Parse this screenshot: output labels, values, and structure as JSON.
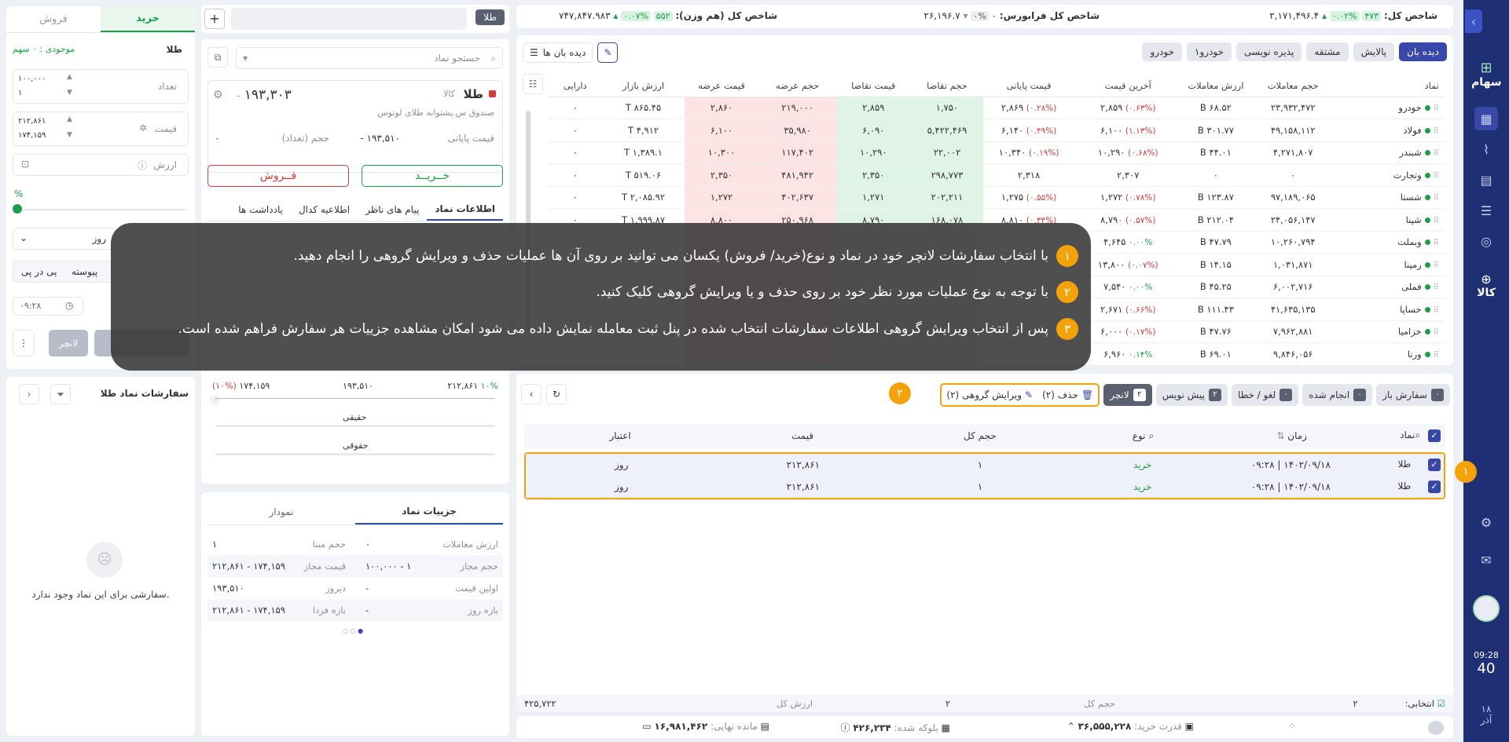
{
  "sidebar": {
    "items": [
      {
        "label": "سهام",
        "icon": "stocks-icon"
      },
      {
        "label": "",
        "icon": "chart-icon"
      },
      {
        "label": "",
        "icon": "trend-icon"
      },
      {
        "label": "",
        "icon": "calculator-icon"
      },
      {
        "label": "",
        "icon": "news-icon"
      },
      {
        "label": "",
        "icon": "coins-icon"
      },
      {
        "label": "کالا",
        "icon": "commodity-icon"
      }
    ],
    "time": "09:28",
    "seconds": "40",
    "date_day": "۱۸",
    "date_month": "آذر"
  },
  "indices": {
    "total_label": "شاخص کل:",
    "total_value": "۲,۱۷۱,۴۹۶.۴",
    "total_change": "۴۷۳",
    "total_pct": "۰.۰۲%",
    "otc_label": "شاخص کل فرابورس:",
    "otc_value": "۲۶,۱۹۶.۷",
    "otc_change": "۰",
    "otc_pct": "۰%",
    "equal_label": "شاخص کل (هم وزن):",
    "equal_value": "۷۴۷,۸۴۷.۹۸۳",
    "equal_change": "۵۵۲",
    "equal_pct": "۰.۰۷%"
  },
  "watchlist": {
    "tabs": [
      "دیده بان",
      "پالایش",
      "مشتقه",
      "پذیره نویسی",
      "خودرو۱",
      "خودرو"
    ],
    "view_label": "دیده بان ها",
    "columns": [
      "نماد",
      "حجم معاملات",
      "ارزش معاملات",
      "آخرین قیمت",
      "قیمت پایانی",
      "حجم تقاضا",
      "قیمت تقاضا",
      "حجم عرضه",
      "قیمت عرضه",
      "ارزش بازار",
      "دارایی"
    ],
    "rows": [
      {
        "sym": "خودرو",
        "vol": "۲۳,۹۳۲,۴۷۲",
        "val": "۶۸.۵۲ B",
        "last": "۲,۸۵۹",
        "last_pct": "(۰.۶۳%)",
        "close": "۲,۸۶۹",
        "close_pct": "(۰.۲۸%)",
        "bvol": "۱,۷۵۰",
        "bprice": "۲,۸۵۹",
        "svol": "۲۱۹,۰۰۰",
        "sprice": "۲,۸۶۰",
        "mcap": "۸۶۵.۴۵ T",
        "asset": "۰"
      },
      {
        "sym": "فولاد",
        "vol": "۴۹,۱۵۸,۱۱۲",
        "val": "۳۰۱.۷۷ B",
        "last": "۶,۱۰۰",
        "last_pct": "(۱.۱۳%)",
        "close": "۶,۱۴۰",
        "close_pct": "(۰.۴۹%)",
        "bvol": "۵,۴۲۲,۴۶۹",
        "bprice": "۶,۰۹۰",
        "svol": "۳۵,۹۸۰",
        "sprice": "۶,۱۰۰",
        "mcap": "۴,۹۱۲ T",
        "asset": "۰"
      },
      {
        "sym": "شبندر",
        "vol": "۴,۲۷۱,۸۰۷",
        "val": "۴۴.۰۱ B",
        "last": "۱۰,۲۹۰",
        "last_pct": "(۰.۶۸%)",
        "close": "۱۰,۳۴۰",
        "close_pct": "(۰.۱۹%)",
        "bvol": "۲۲,۰۰۲",
        "bprice": "۱۰,۲۹۰",
        "svol": "۱۱۷,۴۰۲",
        "sprice": "۱۰,۳۰۰",
        "mcap": "۱,۳۸۹.۱ T",
        "asset": "۰"
      },
      {
        "sym": "وتجارت",
        "vol": "۰",
        "val": "۰",
        "last": "۲,۳۰۷",
        "last_pct": "",
        "close": "۲,۳۱۸",
        "close_pct": "",
        "bvol": "۲۹۸,۷۷۳",
        "bprice": "۲,۳۵۰",
        "svol": "۴۸۱,۹۴۲",
        "sprice": "۲,۳۵۰",
        "mcap": "۵۱۹.۰۶ T",
        "asset": "۰"
      },
      {
        "sym": "شستا",
        "vol": "۹۷,۱۸۹,۰۶۵",
        "val": "۱۲۳.۸۷ B",
        "last": "۱,۲۷۲",
        "last_pct": "(۰.۷۸%)",
        "close": "۱,۲۷۵",
        "close_pct": "(۰.۵۵%)",
        "bvol": "۲۰۲,۲۱۱",
        "bprice": "۱,۲۷۱",
        "svol": "۴۰۲,۶۳۷",
        "sprice": "۱,۲۷۲",
        "mcap": "۲,۰۸۵.۹۲ T",
        "asset": "۰"
      },
      {
        "sym": "شپنا",
        "vol": "۲۴,۰۵۶,۱۴۷",
        "val": "۲۱۲.۰۴ B",
        "last": "۸,۷۹۰",
        "last_pct": "(۰.۵۷%)",
        "close": "۸,۸۱۰",
        "close_pct": "(۰.۳۴%)",
        "bvol": "۱۶۸,۰۷۸",
        "bprice": "۸,۷۹۰",
        "svol": "۲۵۰,۹۶۸",
        "sprice": "۸,۸۰۰",
        "mcap": "۱,۹۹۹.۸۷ T",
        "asset": "۰"
      },
      {
        "sym": "وبملت",
        "vol": "۱۰,۲۶۰,۷۹۴",
        "val": "۴۷.۷۹ B",
        "last": "۴,۶۴۵",
        "last_pct": "۰.۰۰%",
        "close": "",
        "close_pct": "",
        "bvol": "",
        "bprice": "",
        "svol": "",
        "sprice": "",
        "mcap": "",
        "asset": ""
      },
      {
        "sym": "رمپنا",
        "vol": "۱,۰۳۱,۸۷۱",
        "val": "۱۴.۱۵ B",
        "last": "۱۳,۸۰۰",
        "last_pct": "(۰.۰۷%)",
        "close": "",
        "close_pct": "",
        "bvol": "",
        "bprice": "",
        "svol": "",
        "sprice": "",
        "mcap": "",
        "asset": ""
      },
      {
        "sym": "فملی",
        "vol": "۶,۰۰۲,۷۱۶",
        "val": "۴۵.۲۵ B",
        "last": "۷,۵۴۰",
        "last_pct": "۰.۰۰%",
        "close": "",
        "close_pct": "",
        "bvol": "",
        "bprice": "",
        "svol": "",
        "sprice": "",
        "mcap": "",
        "asset": ""
      },
      {
        "sym": "خساپا",
        "vol": "۴۱,۶۳۵,۱۳۵",
        "val": "۱۱۱.۴۳ B",
        "last": "۲,۶۷۱",
        "last_pct": "(۰.۶۶%)",
        "close": "",
        "close_pct": "",
        "bvol": "",
        "bprice": "",
        "svol": "",
        "sprice": "",
        "mcap": "",
        "asset": ""
      },
      {
        "sym": "خزامیا",
        "vol": "۷,۹۶۲,۸۸۱",
        "val": "۴۷.۷۶ B",
        "last": "۶,۰۰۰",
        "last_pct": "(۰.۱۷%)",
        "close": "",
        "close_pct": "",
        "bvol": "",
        "bprice": "",
        "svol": "",
        "sprice": "",
        "mcap": "",
        "asset": ""
      },
      {
        "sym": "ورنا",
        "vol": "۹,۸۴۶,۰۵۶",
        "val": "۶۹.۰۱ B",
        "last": "۶,۹۶۰",
        "last_pct": "۰.۱۴%",
        "close": "",
        "close_pct": "",
        "bvol": "",
        "bprice": "",
        "svol": "",
        "sprice": "",
        "mcap": "",
        "asset": ""
      }
    ]
  },
  "trade_panel": {
    "tab_buy": "خرید",
    "tab_sell": "فروش",
    "symbol": "طلا",
    "stock_label": "موجودی : ۰ سهم",
    "qty_label": "تعداد",
    "qty_value": "۱۰۰,۰۰۰",
    "qty_value2": "۱",
    "price_label": "قیمت",
    "price_value": "۲۱۲,۸۶۱",
    "price_value2": "۱۷۴,۱۵۹",
    "value_label": "ارزش",
    "percent_label": "%",
    "validity": "روز",
    "tabs2": [
      "پی در پی",
      "پیوسته"
    ],
    "time": "۰۹:۲۸",
    "launcher": "لانچر"
  },
  "symbol_panel": {
    "tag": "طلا",
    "search_placeholder": "جستجو نماد",
    "name": "طلا",
    "market": "کالا",
    "fullname": "صندوق س.پشتوانه طلای لوتوس",
    "price": "۱۹۳,۳۰۳",
    "price_change": "-",
    "close_label": "قیمت پایانی",
    "close_value": "۱۹۳,۵۱۰",
    "close_change": "-",
    "vol_label": "حجم (تعداد)",
    "vol_value": "۰",
    "buy": "خــریــد",
    "sell": "فــروش",
    "tabs": [
      "اطلاعات نماد",
      "پیام های ناظر",
      "اطلاعیه کدال",
      "یادداشت ها"
    ],
    "range_low": "۱۷۴,۱۵۹",
    "range_low_pct": "(۱۰%)",
    "range_mid": "۱۹۳,۵۱۰",
    "range_high": "۲۱۲,۸۶۱",
    "range_high_pct": "۱۰%",
    "real_label": "حقیقی",
    "legal_label": "حقوقی"
  },
  "details": {
    "tabs": [
      "جزییات نماد",
      "نمودار"
    ],
    "rows": [
      {
        "k1": "ارزش معاملات",
        "v1": "۰",
        "k2": "حجم مبنا",
        "v2": "۱"
      },
      {
        "k1": "حجم مجاز",
        "v1": "۱ - ۱۰۰,۰۰۰",
        "k2": "قیمت مجاز",
        "v2": "۱۷۴,۱۵۹ - ۲۱۲,۸۶۱"
      },
      {
        "k1": "اولین قیمت",
        "v1": "-",
        "k2": "دیروز",
        "v2": "۱۹۳,۵۱۰"
      },
      {
        "k1": "بازه روز",
        "v1": "-",
        "k2": "بازه فردا",
        "v2": "۱۷۴,۱۵۹ - ۲۱۲,۸۶۱"
      }
    ]
  },
  "symbol_orders": {
    "title": "سفارشات نماد طلا",
    "empty": "سفارشی برای این نماد وجود ندارد."
  },
  "orders": {
    "tabs": [
      {
        "label": "سفارش باز",
        "count": "۰"
      },
      {
        "label": "انجام شده",
        "count": "۰"
      },
      {
        "label": "لغو / خطا",
        "count": "۰"
      },
      {
        "label": "پیش نویس",
        "count": "۲"
      },
      {
        "label": "لانچر",
        "count": "۲"
      }
    ],
    "delete_label": "حذف (۲)",
    "edit_label": "ویرایش گروهی (۲)",
    "columns": [
      "نماد",
      "زمان",
      "نوع",
      "حجم کل",
      "قیمت",
      "اعتبار"
    ],
    "rows": [
      {
        "sym": "طلا",
        "time": "۱۴۰۲/۰۹/۱۸ | ۰۹:۲۸",
        "type": "خرید",
        "vol": "۱",
        "price": "۲۱۲,۸۶۱",
        "validity": "روز"
      },
      {
        "sym": "طلا",
        "time": "۱۴۰۲/۰۹/۱۸ | ۰۹:۲۸",
        "type": "خرید",
        "vol": "۱",
        "price": "۲۱۲,۸۶۱",
        "validity": "روز"
      }
    ],
    "footer_selected_label": "انتخابی:",
    "footer_selected": "۲",
    "footer_vol_label": "حجم کل",
    "footer_vol": "۲",
    "footer_val_label": "ارزش کل",
    "footer_val": "۴۲۵,۷۲۲"
  },
  "status": {
    "buying_power_label": "قدرت خرید:",
    "buying_power": "۳۶,۵۵۵,۲۲۸",
    "blocked_label": "بلوکه شده:",
    "blocked": "۴۲۶,۲۳۴",
    "remaining_label": "مانده نهایی:",
    "remaining": "۱۶,۹۸۱,۴۶۲"
  },
  "overlay": {
    "steps": [
      {
        "num": "۱",
        "text": "با انتخاب سفارشات لانچر خود در نماد و نوع(خرید/ فروش) یکسان می توانید بر روی آن ها عملیات حذف و ویرایش گروهی را انجام دهید."
      },
      {
        "num": "۲",
        "text": "با توجه به نوع عملیات مورد نظر خود بر روی حذف و یا ویرایش گروهی کلیک کنید."
      },
      {
        "num": "۳",
        "text": "پس از انتخاب ویرایش گروهی اطلاعات سفارشات انتخاب شده در پنل ثبت معامله نمایش داده می شود امکان مشاهده جزییات هر سفارش فراهم شده است."
      }
    ],
    "marker1": "۱",
    "marker2": "۲"
  },
  "colors": {
    "primary": "#3848a8",
    "sidebar": "#1e2f73",
    "buy": "#1e9e4a",
    "sell": "#d43b3b",
    "highlight": "#f3a20a"
  }
}
